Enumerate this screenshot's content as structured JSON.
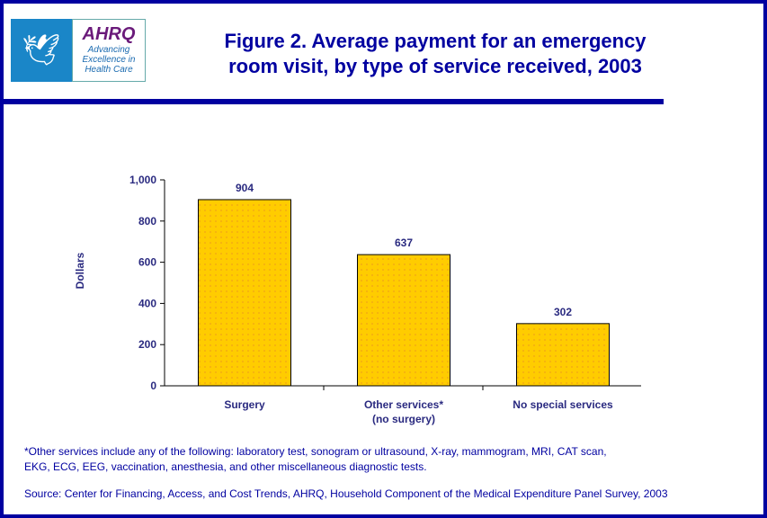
{
  "logo": {
    "text": "AHRQ Advancing Excellence in Health Care",
    "ahrq": "AHRQ",
    "tagline": [
      "Advancing",
      "Excellence in",
      "Health Care"
    ]
  },
  "title_lines": [
    "Figure 2. Average payment for an emergency",
    "room visit, by type of service received, 2003"
  ],
  "chart_data": {
    "type": "bar",
    "title": "Figure 2. Average payment for an emergency room visit, by type of service received, 2003",
    "categories": [
      [
        "Surgery"
      ],
      [
        "Other services*",
        "(no surgery)"
      ],
      [
        "No special services"
      ]
    ],
    "values": [
      904,
      637,
      302
    ],
    "data_labels": [
      "904",
      "637",
      "302"
    ],
    "ylabel": "Dollars",
    "xlabel": "",
    "ylim": [
      0,
      1000
    ],
    "yticks": [
      0,
      200,
      400,
      600,
      800,
      1000
    ],
    "ytick_labels": [
      "0",
      "200",
      "400",
      "600",
      "800",
      "1,000"
    ],
    "grid": false,
    "bar_color": "#ffcc00",
    "text_color": "#2a2a80"
  },
  "footnote": [
    "*Other services include any of the following: laboratory test, sonogram or ultrasound, X-ray, mammogram, MRI, CAT scan,",
    "EKG, ECG, EEG, vaccination, anesthesia, and other miscellaneous diagnostic tests."
  ],
  "source": "Source: Center for Financing, Access, and Cost Trends, AHRQ, Household Component of the Medical Expenditure Panel Survey, 2003"
}
